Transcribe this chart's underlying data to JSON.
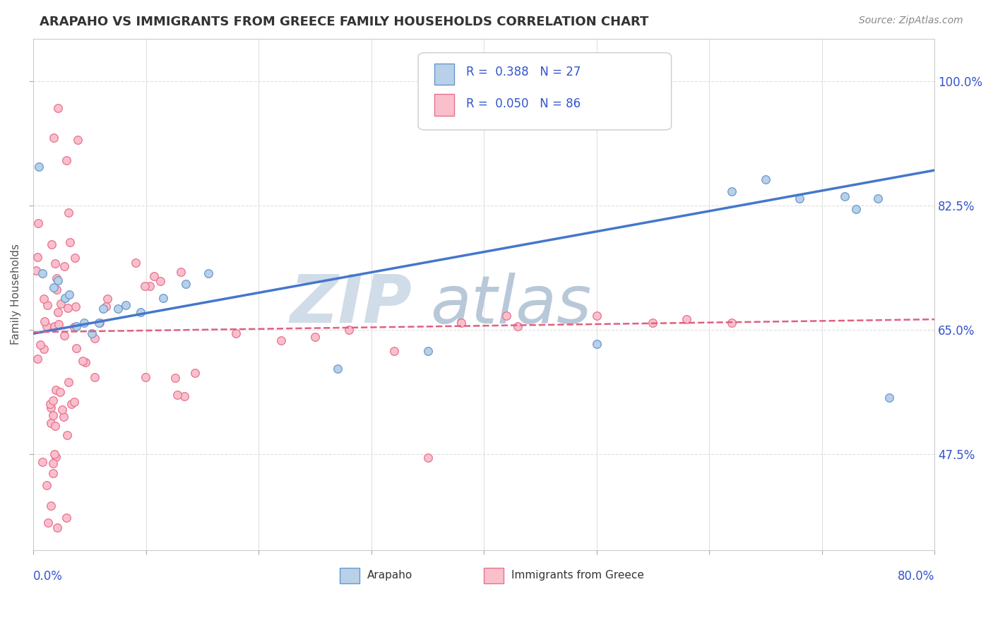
{
  "title": "ARAPAHO VS IMMIGRANTS FROM GREECE FAMILY HOUSEHOLDS CORRELATION CHART",
  "source_text": "Source: ZipAtlas.com",
  "ylabel": "Family Households",
  "y_ticks": [
    "47.5%",
    "65.0%",
    "82.5%",
    "100.0%"
  ],
  "y_tick_vals": [
    0.475,
    0.65,
    0.825,
    1.0
  ],
  "x_lim": [
    0.0,
    0.8
  ],
  "y_lim": [
    0.34,
    1.06
  ],
  "legend_text1": "R =  0.388   N = 27",
  "legend_text2": "R =  0.050   N = 86",
  "color_arapaho_fill": "#b8d0e8",
  "color_arapaho_edge": "#6699cc",
  "color_greece_fill": "#f9c0cc",
  "color_greece_edge": "#e87090",
  "color_line_arapaho": "#4477cc",
  "color_line_greece": "#e06080",
  "color_title": "#333333",
  "color_legend_text": "#3355cc",
  "color_axis_labels": "#3355cc",
  "color_watermark": "#d0dce8",
  "color_grid": "#e0e0e0",
  "watermark_zip": "ZIP",
  "watermark_atlas": "atlas",
  "figsize": [
    14.06,
    8.92
  ],
  "dpi": 100,
  "ara_line_x0": 0.0,
  "ara_line_y0": 0.645,
  "ara_line_x1": 0.8,
  "ara_line_y1": 0.875,
  "gre_line_x0": 0.0,
  "gre_line_y0": 0.647,
  "gre_line_x1": 0.8,
  "gre_line_y1": 0.665,
  "x_grid_ticks": [
    0.0,
    0.1,
    0.2,
    0.3,
    0.4,
    0.5,
    0.6,
    0.7,
    0.8
  ]
}
